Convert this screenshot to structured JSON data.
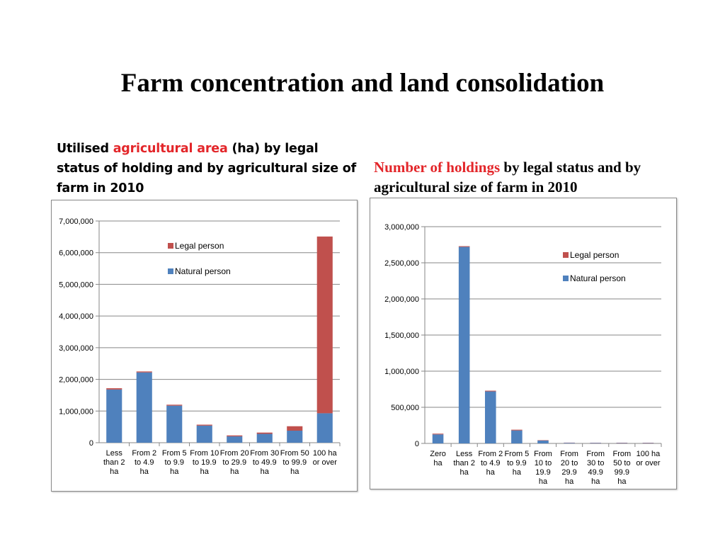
{
  "title": "Farm concentration and land consolidation",
  "left_heading": {
    "part1": "Utilised ",
    "highlight": "agricultural area",
    "part2": " (ha) by legal status of holding and by agricultural size of farm in 2010"
  },
  "right_heading": {
    "highlight": "Number of holdings",
    "part2": " by legal status and by agricultural size of farm in 2010"
  },
  "colors": {
    "natural": "#4f81bd",
    "legal": "#c0504d",
    "highlight": "#e3262a"
  },
  "chart_data": [
    {
      "type": "bar",
      "stacked": true,
      "categories": [
        [
          "Less",
          "than 2",
          "ha"
        ],
        [
          "From 2",
          "to 4.9",
          "ha"
        ],
        [
          "From 5",
          "to 9.9",
          "ha"
        ],
        [
          "From 10",
          "to 19.9",
          "ha"
        ],
        [
          "From 20",
          "to 29.9",
          "ha"
        ],
        [
          "From 30",
          "to 49.9",
          "ha"
        ],
        [
          "From 50",
          "to 99.9",
          "ha"
        ],
        [
          "100 ha",
          "or over"
        ]
      ],
      "series": [
        {
          "name": "Natural person",
          "color": "#4f81bd",
          "values": [
            1680000,
            2220000,
            1170000,
            540000,
            200000,
            280000,
            380000,
            930000
          ]
        },
        {
          "name": "Legal person",
          "color": "#c0504d",
          "values": [
            40000,
            30000,
            30000,
            30000,
            30000,
            40000,
            140000,
            5580000
          ]
        }
      ],
      "ylim": [
        0,
        7000000
      ],
      "yticks": [
        0,
        1000000,
        2000000,
        3000000,
        4000000,
        5000000,
        6000000,
        7000000
      ],
      "ytick_labels": [
        "0",
        "1,000,000",
        "2,000,000",
        "3,000,000",
        "4,000,000",
        "5,000,000",
        "6,000,000",
        "7,000,000"
      ],
      "grid": true,
      "legend": "top-center"
    },
    {
      "type": "bar",
      "stacked": true,
      "categories": [
        [
          "Zero",
          "ha"
        ],
        [
          "Less",
          "than 2",
          "ha"
        ],
        [
          "From 2",
          "to 4.9",
          "ha"
        ],
        [
          "From 5",
          "to 9.9",
          "ha"
        ],
        [
          "From",
          "10 to",
          "19.9",
          "ha"
        ],
        [
          "From",
          "20 to",
          "29.9",
          "ha"
        ],
        [
          "From",
          "30 to",
          "49.9",
          "ha"
        ],
        [
          "From",
          "50 to",
          "99.9",
          "ha"
        ],
        [
          "100 ha",
          "or over"
        ]
      ],
      "series": [
        {
          "name": "Natural person",
          "color": "#4f81bd",
          "values": [
            125000,
            2720000,
            720000,
            180000,
            40000,
            8000,
            7000,
            6000,
            5000
          ]
        },
        {
          "name": "Legal person",
          "color": "#c0504d",
          "values": [
            10000,
            10000,
            10000,
            10000,
            5000,
            3000,
            3000,
            4000,
            4000
          ]
        }
      ],
      "ylim": [
        0,
        3000000
      ],
      "yticks": [
        0,
        500000,
        1000000,
        1500000,
        2000000,
        2500000,
        3000000
      ],
      "ytick_labels": [
        "0",
        "500,000",
        "1,000,000",
        "1,500,000",
        "2,000,000",
        "2,500,000",
        "3,000,000"
      ],
      "grid": true,
      "legend": "top-right"
    }
  ]
}
